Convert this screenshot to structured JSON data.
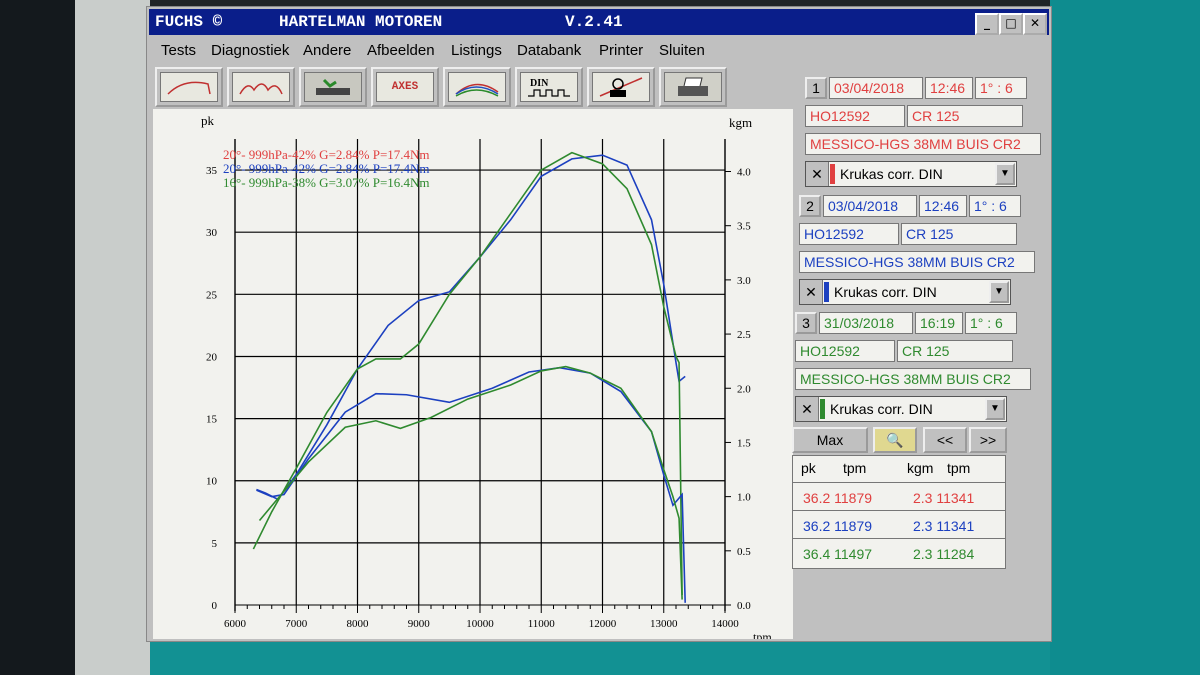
{
  "window": {
    "title_left": "FUCHS ©",
    "title_center": "HARTELMAN MOTOREN",
    "version": "V.2.41",
    "controls": [
      "_",
      "□",
      "✕"
    ]
  },
  "menu": [
    "Tests",
    "Diagnostiek",
    "Andere",
    "Afbeelden",
    "Listings",
    "Databank",
    "Printer",
    "Sluiten"
  ],
  "toolbar": [
    "power-curve",
    "multi-curve",
    "engine",
    "AXES",
    "color-curves",
    "DIN",
    "operator",
    "printer-print"
  ],
  "legend": [
    {
      "text": "20°- 999hPa-42% G=2.84% P=17.4Nm",
      "color": "#e04040"
    },
    {
      "text": "20°- 999hPa-42% G=2.84% P=17.4Nm",
      "color": "#1c40c0"
    },
    {
      "text": "16°- 999hPa-38% G=3.07% P=16.4Nm",
      "color": "#2f8a2f"
    }
  ],
  "runs": [
    {
      "num": "1",
      "date": "03/04/2018",
      "time": "12:46",
      "ratio": "1° : 6",
      "id": "HO12592",
      "model": "CR 125",
      "desc": "MESSICO-HGS 38MM BUIS CR2",
      "corr": "Krukas corr. DIN",
      "color": "#e04040"
    },
    {
      "num": "2",
      "date": "03/04/2018",
      "time": "12:46",
      "ratio": "1° : 6",
      "id": "HO12592",
      "model": "CR 125",
      "desc": "MESSICO-HGS 38MM BUIS CR2",
      "corr": "Krukas corr. DIN",
      "color": "#1c40c0"
    },
    {
      "num": "3",
      "date": "31/03/2018",
      "time": "16:19",
      "ratio": "1° : 6",
      "id": "HO12592",
      "model": "CR 125",
      "desc": "MESSICO-HGS 38MM BUIS CR2",
      "corr": "Krukas corr. DIN",
      "color": "#2f8a2f"
    }
  ],
  "buttons": {
    "max": "Max",
    "prev": "<<",
    "next": ">>"
  },
  "results": {
    "headers": [
      "pk",
      "tpm",
      "kgm",
      "tpm"
    ],
    "rows": [
      {
        "pk": "36.2 11879",
        "kgm": "2.3 11341",
        "color": "#e04040"
      },
      {
        "pk": "36.2 11879",
        "kgm": "2.3 11341",
        "color": "#1c40c0"
      },
      {
        "pk": "36.4 11497",
        "kgm": "2.3 11284",
        "color": "#2f8a2f"
      }
    ]
  },
  "chart_data": {
    "type": "line",
    "xlabel": "tpm",
    "ylabel": "pk",
    "y2label": "kgm",
    "xlim": [
      6000,
      14000
    ],
    "ylim": [
      0,
      37.5
    ],
    "y2lim": [
      0,
      4.3
    ],
    "xticks": [
      6000,
      7000,
      8000,
      9000,
      10000,
      11000,
      12000,
      13000,
      14000
    ],
    "yticks": [
      0,
      5,
      10,
      15,
      20,
      25,
      30,
      35
    ],
    "y2ticks": [
      0.0,
      0.5,
      1.0,
      1.5,
      2.0,
      2.5,
      3.0,
      3.5,
      4.0
    ],
    "series": [
      {
        "axis": "pk",
        "color": "#1c40c0",
        "x": [
          6350,
          6500,
          6700,
          7000,
          7500,
          8000,
          8500,
          9000,
          9500,
          10000,
          10500,
          11000,
          11500,
          12000,
          12400,
          12800,
          13000,
          13200,
          13250,
          13350
        ],
        "y": [
          9.3,
          9.0,
          8.5,
          10.5,
          14.5,
          19.0,
          22.5,
          24.5,
          25.2,
          28.0,
          31.0,
          34.5,
          35.9,
          36.2,
          35.4,
          31.0,
          25.8,
          19.5,
          18.0,
          18.4
        ]
      },
      {
        "axis": "pk",
        "color": "#2f8a2f",
        "x": [
          6300,
          6600,
          7000,
          7500,
          8000,
          8300,
          8700,
          9000,
          9500,
          10000,
          10500,
          11000,
          11500,
          12000,
          12400,
          12800,
          13000,
          13200,
          13250,
          13300
        ],
        "y": [
          4.5,
          7.5,
          11.0,
          15.5,
          19.0,
          19.8,
          19.8,
          21.0,
          25.0,
          28.0,
          31.5,
          35.0,
          36.4,
          35.5,
          33.5,
          29.0,
          24.0,
          20.0,
          19.5,
          0.8
        ]
      },
      {
        "axis": "kgm",
        "color": "#1c40c0",
        "x": [
          6350,
          6600,
          6800,
          7200,
          7800,
          8300,
          8800,
          9500,
          10200,
          10800,
          11300,
          11800,
          12300,
          12800,
          13000,
          13150,
          13300,
          13350
        ],
        "y": [
          1.06,
          1.0,
          1.02,
          1.35,
          1.78,
          1.95,
          1.94,
          1.87,
          2.0,
          2.15,
          2.19,
          2.14,
          1.97,
          1.6,
          1.2,
          0.92,
          1.02,
          0.02
        ]
      },
      {
        "axis": "kgm",
        "color": "#2f8a2f",
        "x": [
          6400,
          6800,
          7200,
          7800,
          8300,
          8700,
          9200,
          9800,
          10500,
          11000,
          11400,
          11800,
          12300,
          12800,
          13000,
          13150,
          13250,
          13300
        ],
        "y": [
          0.78,
          1.05,
          1.32,
          1.64,
          1.7,
          1.63,
          1.73,
          1.9,
          2.03,
          2.16,
          2.2,
          2.14,
          2.0,
          1.6,
          1.25,
          1.0,
          0.8,
          0.05
        ]
      }
    ]
  }
}
